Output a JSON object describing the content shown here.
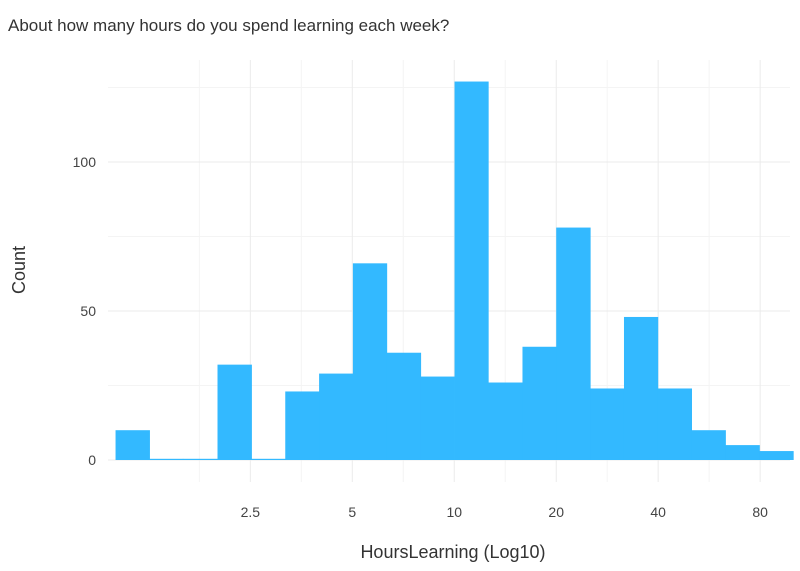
{
  "chart_data": {
    "type": "bar",
    "title": "About how many hours do you spend learning each week?",
    "xlabel": "HoursLearning (Log10)",
    "ylabel": "Count",
    "x_scale": "log10",
    "xlim": [
      0.95,
      98
    ],
    "ylim": [
      0,
      130
    ],
    "grid": true,
    "bar_color": "#33b9ff",
    "x_ticks": [
      {
        "value": 2.5,
        "label": "2.5"
      },
      {
        "value": 5,
        "label": "5"
      },
      {
        "value": 10,
        "label": "10"
      },
      {
        "value": 20,
        "label": "20"
      },
      {
        "value": 40,
        "label": "40"
      },
      {
        "value": 80,
        "label": "80"
      }
    ],
    "y_ticks": [
      {
        "value": 0,
        "label": "0"
      },
      {
        "value": 50,
        "label": "50"
      },
      {
        "value": 100,
        "label": "100"
      }
    ],
    "bins": [
      {
        "x0": 1.0,
        "x1": 1.26,
        "count": 10
      },
      {
        "x0": 1.26,
        "x1": 1.58,
        "count": 0
      },
      {
        "x0": 1.58,
        "x1": 2.0,
        "count": 0
      },
      {
        "x0": 2.0,
        "x1": 2.52,
        "count": 32
      },
      {
        "x0": 2.52,
        "x1": 3.17,
        "count": 0
      },
      {
        "x0": 3.17,
        "x1": 3.99,
        "count": 23
      },
      {
        "x0": 3.99,
        "x1": 5.02,
        "count": 29
      },
      {
        "x0": 5.02,
        "x1": 6.32,
        "count": 66
      },
      {
        "x0": 6.32,
        "x1": 7.96,
        "count": 36
      },
      {
        "x0": 7.96,
        "x1": 10.02,
        "count": 28
      },
      {
        "x0": 10.02,
        "x1": 12.6,
        "count": 127
      },
      {
        "x0": 12.6,
        "x1": 15.9,
        "count": 26
      },
      {
        "x0": 15.9,
        "x1": 20.0,
        "count": 38
      },
      {
        "x0": 20.0,
        "x1": 25.2,
        "count": 78
      },
      {
        "x0": 25.2,
        "x1": 31.7,
        "count": 24
      },
      {
        "x0": 31.7,
        "x1": 39.9,
        "count": 48
      },
      {
        "x0": 39.9,
        "x1": 50.2,
        "count": 24
      },
      {
        "x0": 50.2,
        "x1": 63.2,
        "count": 10
      },
      {
        "x0": 63.2,
        "x1": 79.6,
        "count": 5
      },
      {
        "x0": 79.6,
        "x1": 100.2,
        "count": 3
      }
    ]
  }
}
